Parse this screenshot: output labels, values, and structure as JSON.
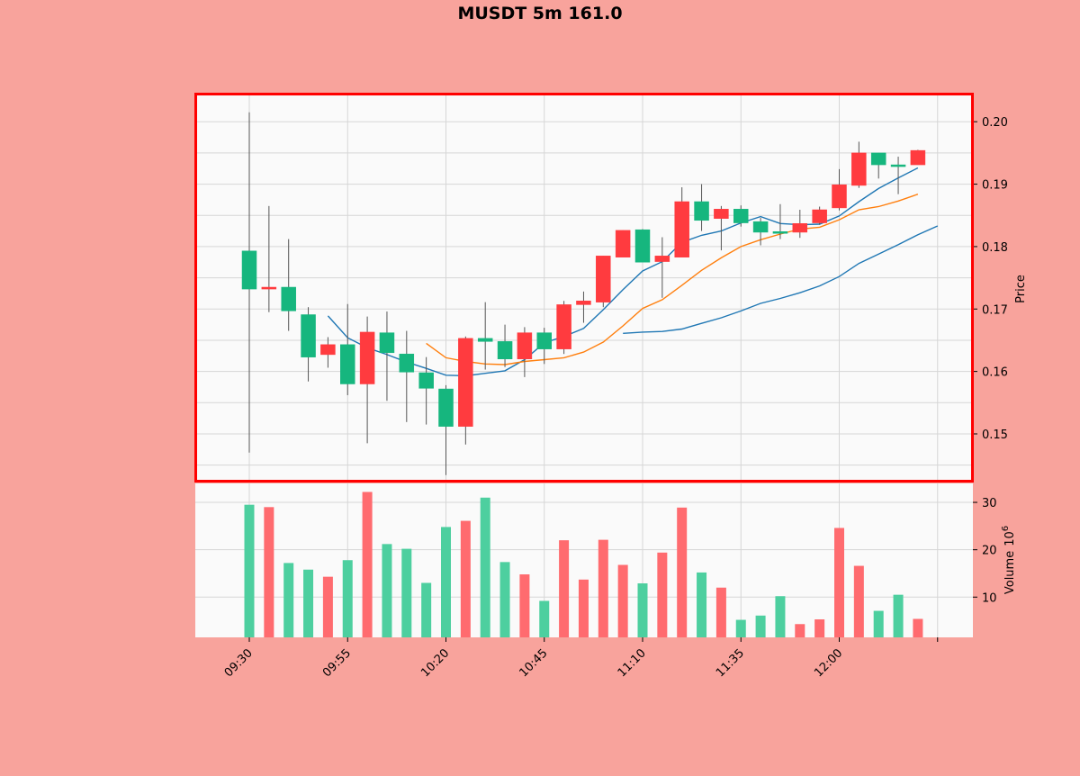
{
  "chart_data": {
    "type": "candlestick",
    "title": "MUSDT 5m 161.0",
    "price_ylabel": "Price",
    "volume_ylabel": "Volume",
    "volume_exponent": "10",
    "volume_exponent_power": "6",
    "price_ylim": [
      0.1425,
      0.2045
    ],
    "price_ticks": [
      "0.15",
      "0.16",
      "0.17",
      "0.18",
      "0.19",
      "0.20"
    ],
    "volume_ylim": [
      1.5,
      34
    ],
    "volume_ticks": [
      "10",
      "20",
      "30"
    ],
    "x_tick_labels": [
      "09:30",
      "09:55",
      "10:20",
      "10:45",
      "11:10",
      "11:35",
      "12:00"
    ],
    "x_tick_indices": [
      0,
      5,
      10,
      15,
      20,
      25,
      30
    ],
    "up_color": "#16b67e",
    "down_color": "#ff3b3f",
    "highlight_box_color": "#ff0000",
    "candles": [
      {
        "time": "09:30",
        "o": 0.1732,
        "h": 0.2015,
        "l": 0.147,
        "c": 0.1793,
        "v": 29.5
      },
      {
        "time": "09:35",
        "o": 0.1735,
        "h": 0.1865,
        "l": 0.1695,
        "c": 0.1732,
        "v": 29.0
      },
      {
        "time": "09:40",
        "o": 0.1697,
        "h": 0.1812,
        "l": 0.1665,
        "c": 0.1735,
        "v": 17.2
      },
      {
        "time": "09:45",
        "o": 0.1623,
        "h": 0.1703,
        "l": 0.1584,
        "c": 0.1691,
        "v": 15.8
      },
      {
        "time": "09:50",
        "o": 0.1643,
        "h": 0.1655,
        "l": 0.1606,
        "c": 0.1627,
        "v": 14.3
      },
      {
        "time": "09:55",
        "o": 0.158,
        "h": 0.1708,
        "l": 0.1562,
        "c": 0.1643,
        "v": 17.8
      },
      {
        "time": "10:00",
        "o": 0.1663,
        "h": 0.1688,
        "l": 0.1485,
        "c": 0.158,
        "v": 32.2
      },
      {
        "time": "10:05",
        "o": 0.163,
        "h": 0.1696,
        "l": 0.1553,
        "c": 0.1662,
        "v": 21.2
      },
      {
        "time": "10:10",
        "o": 0.1599,
        "h": 0.1665,
        "l": 0.1519,
        "c": 0.1628,
        "v": 20.2
      },
      {
        "time": "10:15",
        "o": 0.1573,
        "h": 0.1623,
        "l": 0.1515,
        "c": 0.1598,
        "v": 13.0
      },
      {
        "time": "10:20",
        "o": 0.1512,
        "h": 0.1578,
        "l": 0.1434,
        "c": 0.1572,
        "v": 24.8
      },
      {
        "time": "10:25",
        "o": 0.1653,
        "h": 0.1656,
        "l": 0.1483,
        "c": 0.1512,
        "v": 26.1
      },
      {
        "time": "10:30",
        "o": 0.1648,
        "h": 0.1711,
        "l": 0.1603,
        "c": 0.1653,
        "v": 31.0
      },
      {
        "time": "10:35",
        "o": 0.162,
        "h": 0.1675,
        "l": 0.1607,
        "c": 0.1648,
        "v": 17.4
      },
      {
        "time": "10:40",
        "o": 0.1662,
        "h": 0.1671,
        "l": 0.1591,
        "c": 0.162,
        "v": 14.8
      },
      {
        "time": "10:45",
        "o": 0.1636,
        "h": 0.167,
        "l": 0.1612,
        "c": 0.1662,
        "v": 9.2
      },
      {
        "time": "10:50",
        "o": 0.1707,
        "h": 0.1713,
        "l": 0.1628,
        "c": 0.1636,
        "v": 22.0
      },
      {
        "time": "10:55",
        "o": 0.1713,
        "h": 0.1728,
        "l": 0.1678,
        "c": 0.1707,
        "v": 13.7
      },
      {
        "time": "11:00",
        "o": 0.1785,
        "h": 0.1785,
        "l": 0.1703,
        "c": 0.1711,
        "v": 22.1
      },
      {
        "time": "11:05",
        "o": 0.1826,
        "h": 0.1826,
        "l": 0.1788,
        "c": 0.1783,
        "v": 16.8
      },
      {
        "time": "11:10",
        "o": 0.1775,
        "h": 0.1828,
        "l": 0.1775,
        "c": 0.1827,
        "v": 12.9
      },
      {
        "time": "11:15",
        "o": 0.1785,
        "h": 0.1815,
        "l": 0.1718,
        "c": 0.1776,
        "v": 19.4
      },
      {
        "time": "11:20",
        "o": 0.1872,
        "h": 0.1895,
        "l": 0.1783,
        "c": 0.1783,
        "v": 28.9
      },
      {
        "time": "11:25",
        "o": 0.1842,
        "h": 0.19,
        "l": 0.1825,
        "c": 0.1872,
        "v": 15.2
      },
      {
        "time": "11:30",
        "o": 0.186,
        "h": 0.1865,
        "l": 0.1794,
        "c": 0.1845,
        "v": 12.0
      },
      {
        "time": "11:35",
        "o": 0.1838,
        "h": 0.1866,
        "l": 0.1832,
        "c": 0.186,
        "v": 5.2
      },
      {
        "time": "11:40",
        "o": 0.1823,
        "h": 0.1846,
        "l": 0.1802,
        "c": 0.184,
        "v": 6.1
      },
      {
        "time": "11:45",
        "o": 0.1823,
        "h": 0.1868,
        "l": 0.1812,
        "c": 0.1824,
        "v": 10.2
      },
      {
        "time": "11:50",
        "o": 0.1837,
        "h": 0.1859,
        "l": 0.1814,
        "c": 0.1823,
        "v": 4.3
      },
      {
        "time": "11:55",
        "o": 0.1859,
        "h": 0.1864,
        "l": 0.1835,
        "c": 0.1838,
        "v": 5.3
      },
      {
        "time": "12:00",
        "o": 0.1899,
        "h": 0.1924,
        "l": 0.1858,
        "c": 0.1862,
        "v": 24.6
      },
      {
        "time": "12:05",
        "o": 0.195,
        "h": 0.1968,
        "l": 0.1894,
        "c": 0.1898,
        "v": 16.6
      },
      {
        "time": "12:10",
        "o": 0.1931,
        "h": 0.195,
        "l": 0.1909,
        "c": 0.195,
        "v": 7.1
      },
      {
        "time": "12:15",
        "o": 0.1931,
        "h": 0.1944,
        "l": 0.1884,
        "c": 0.1931,
        "v": 10.5
      },
      {
        "time": "12:20",
        "o": 0.1954,
        "h": 0.1955,
        "l": 0.1931,
        "c": 0.1931,
        "v": 5.4
      }
    ],
    "moving_averages": [
      {
        "color": "#1f77b4",
        "start_index": 4,
        "values": [
          0.1689,
          0.1654,
          0.1638,
          0.1627,
          0.1615,
          0.1605,
          0.1594,
          0.1593,
          0.1597,
          0.1601,
          0.1619,
          0.1646,
          0.1656,
          0.1669,
          0.1699,
          0.1731,
          0.1761,
          0.1776,
          0.1807,
          0.1818,
          0.1825,
          0.1838,
          0.1848,
          0.1837,
          0.1835,
          0.1836,
          0.1849,
          0.1872,
          0.1893,
          0.191,
          0.1926
        ]
      },
      {
        "color": "#ff7f0e",
        "start_index": 9,
        "values": [
          0.1645,
          0.1622,
          0.1616,
          0.1612,
          0.1611,
          0.1616,
          0.1619,
          0.1622,
          0.1631,
          0.1647,
          0.1673,
          0.1701,
          0.1715,
          0.1738,
          0.1762,
          0.1782,
          0.18,
          0.1811,
          0.182,
          0.1828,
          0.1831,
          0.1843,
          0.1859,
          0.1864,
          0.1873,
          0.1884
        ]
      },
      {
        "color": "#1f77b4",
        "start_index": 19,
        "values": [
          0.1661,
          0.1663,
          0.1664,
          0.1668,
          0.1677,
          0.1686,
          0.1697,
          0.1709,
          0.1717,
          0.1726,
          0.1737,
          0.1752,
          0.1773,
          0.1788,
          0.1803,
          0.1819,
          0.1833
        ]
      }
    ]
  }
}
